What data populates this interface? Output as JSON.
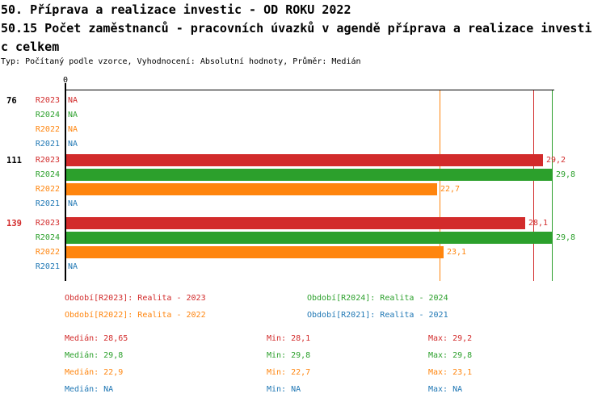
{
  "header": {
    "line1": "50. Příprava a realizace investic - OD ROKU 2022",
    "line2": "50.15 Počet zaměstnanců - pracovních úvazků v agendě příprava a realizace investi",
    "line3": "c celkem",
    "meta": "Typ: Počítaný podle vzorce, Vyhodnocení: Absolutní hodnoty, Průměr: Medián"
  },
  "colors": {
    "r2023": "#d22b2b",
    "r2024": "#2ca02c",
    "r2022": "#ff850e",
    "r2021": "#1f77b4",
    "axis": "#000000"
  },
  "chart_data": {
    "type": "bar",
    "orientation": "horizontal",
    "xlabel": "",
    "ylabel": "",
    "axis": {
      "zero_label": "0",
      "xmin": 0,
      "xmax": 30,
      "grid": false
    },
    "series_order": [
      "R2023",
      "R2024",
      "R2022",
      "R2021"
    ],
    "groups": [
      {
        "label": "76",
        "label_color": "#000000",
        "rows": [
          {
            "series": "R2023",
            "value": null,
            "display": "NA"
          },
          {
            "series": "R2024",
            "value": null,
            "display": "NA"
          },
          {
            "series": "R2022",
            "value": null,
            "display": "NA"
          },
          {
            "series": "R2021",
            "value": null,
            "display": "NA"
          }
        ]
      },
      {
        "label": "111",
        "label_color": "#000000",
        "rows": [
          {
            "series": "R2023",
            "value": 29.2,
            "display": "29,2"
          },
          {
            "series": "R2024",
            "value": 29.8,
            "display": "29,8"
          },
          {
            "series": "R2022",
            "value": 22.7,
            "display": "22,7"
          },
          {
            "series": "R2021",
            "value": null,
            "display": "NA"
          }
        ]
      },
      {
        "label": "139",
        "label_color": "#d22b2b",
        "rows": [
          {
            "series": "R2023",
            "value": 28.1,
            "display": "28,1"
          },
          {
            "series": "R2024",
            "value": 29.8,
            "display": "29,8"
          },
          {
            "series": "R2022",
            "value": 23.1,
            "display": "23,1"
          },
          {
            "series": "R2021",
            "value": null,
            "display": "NA"
          }
        ]
      }
    ],
    "median_lines": [
      {
        "series": "r2022",
        "value": 22.9
      },
      {
        "series": "r2023",
        "value": 28.65
      },
      {
        "series": "r2024",
        "value": 29.8
      }
    ]
  },
  "legend": {
    "items": [
      {
        "series": "r2023",
        "label": "Období[R2023]: Realita - 2023"
      },
      {
        "series": "r2024",
        "label": "Období[R2024]: Realita - 2024"
      },
      {
        "series": "r2022",
        "label": "Období[R2022]: Realita - 2022"
      },
      {
        "series": "r2021",
        "label": "Období[R2021]: Realita - 2021"
      }
    ]
  },
  "stats": {
    "rows": [
      {
        "series": "r2023",
        "median": "Medián: 28,65",
        "min": "Min: 28,1",
        "max": "Max: 29,2"
      },
      {
        "series": "r2024",
        "median": "Medián: 29,8",
        "min": "Min: 29,8",
        "max": "Max: 29,8"
      },
      {
        "series": "r2022",
        "median": "Medián: 22,9",
        "min": "Min: 22,7",
        "max": "Max: 23,1"
      },
      {
        "series": "r2021",
        "median": "Medián: NA",
        "min": "Min: NA",
        "max": "Max: NA"
      }
    ]
  }
}
